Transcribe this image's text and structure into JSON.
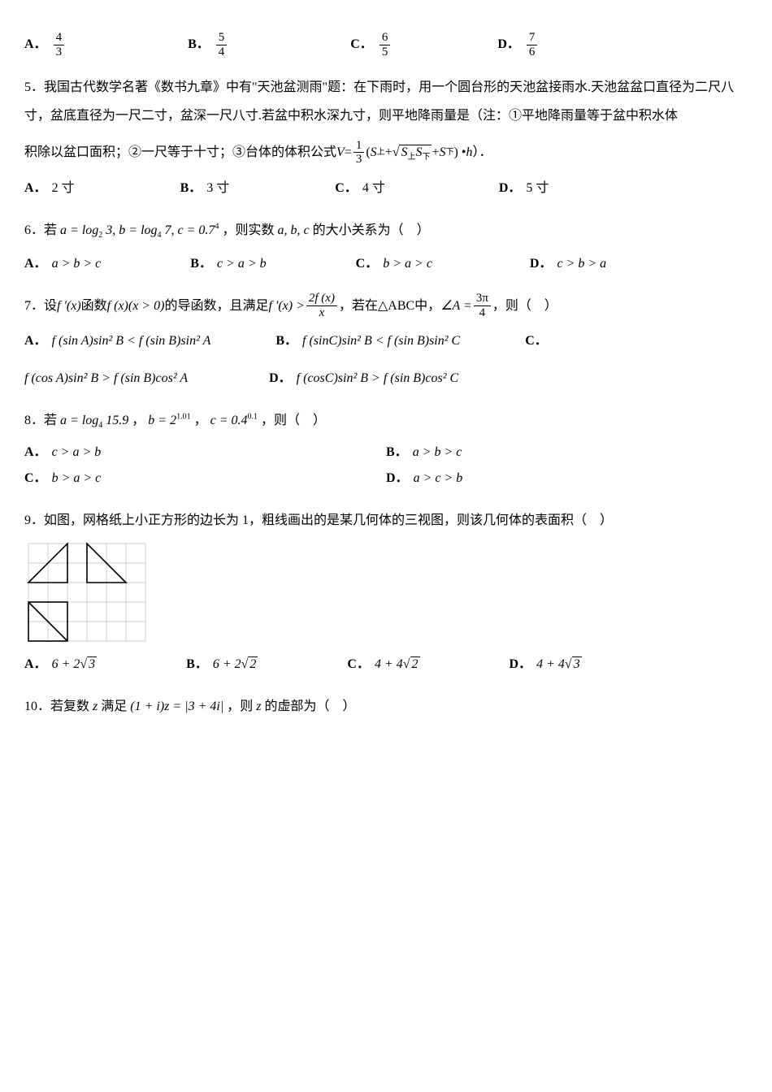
{
  "q4": {
    "options": {
      "A": {
        "num": "4",
        "den": "3"
      },
      "B": {
        "num": "5",
        "den": "4"
      },
      "C": {
        "num": "6",
        "den": "5"
      },
      "D": {
        "num": "7",
        "den": "6"
      }
    }
  },
  "q5": {
    "number": "5．",
    "text_part1": "我国古代数学名著《数书九章》中有\"天池盆测雨\"题：在下雨时，用一个圆台形的天池盆接雨水.天池盆盆口直径为二尺八寸，盆底直径为一尺二寸，盆深一尺八寸.若盆中积水深九寸，则平地降雨量是（注：①平地降雨量等于盆中积水体",
    "text_part2": "积除以盆口面积；②一尺等于十寸；③台体的体积公式",
    "formula_V": "V",
    "formula_eq": " = ",
    "formula_frac": {
      "num": "1",
      "den": "3"
    },
    "formula_S1": "S",
    "formula_sub1": "上",
    "formula_S2": "S",
    "formula_sub2": "上",
    "formula_S3": "S",
    "formula_sub3": "下",
    "formula_S4": "S",
    "formula_sub4": "下",
    "formula_h": "h",
    "text_part3": "）．",
    "options": {
      "A": "2 寸",
      "B": "3 寸",
      "C": "4 寸",
      "D": "5 寸"
    }
  },
  "q6": {
    "number": "6．",
    "text_pre": "若",
    "text_a": "a = log",
    "text_a_sub": "2",
    "text_a_val": " 3, b = log",
    "text_b_sub": "4",
    "text_b_val": " 7, c = 0.7",
    "text_c_sup": "4",
    "text_mid": "，则实数",
    "text_vars": "a, b, c",
    "text_post": "的大小关系为（　）",
    "options": {
      "A": "a > b > c",
      "B": "c > a > b",
      "C": "b > a > c",
      "D": "c > b > a"
    }
  },
  "q7": {
    "number": "7．",
    "text_pre": "设",
    "fprime": "f '(x)",
    "text_mid1": "函数",
    "fx": "f (x)(x > 0)",
    "text_mid2": "的导函数，且满足",
    "ineq_left": "f '(x) > ",
    "ineq_frac": {
      "num": "2f (x)",
      "den": "x"
    },
    "text_mid3": "，若在",
    "triangle": "△ABC",
    "text_mid4": "中，",
    "angle_A": "∠A = ",
    "angle_frac": {
      "num": "3π",
      "den": "4"
    },
    "text_post": "，则（　）",
    "options": {
      "A": "f (sin A)sin² B < f (sin B)sin² A",
      "B": "f (sinC)sin² B < f (sin B)sin² C",
      "C": "f (cos A)sin² B > f (sin B)cos² A",
      "D": "f (cosC)sin² B > f (sin B)cos² C"
    }
  },
  "q8": {
    "number": "8．",
    "text_pre": "若",
    "text_a": "a = log",
    "text_a_sub": "4",
    "text_a_val": " 15.9",
    "text_sep1": "，",
    "text_b": "b = 2",
    "text_b_sup": "1.01",
    "text_sep2": "，",
    "text_c": "c = 0.4",
    "text_c_sup": "0.1",
    "text_post": "，则（　）",
    "options": {
      "A": "c > a > b",
      "B": "a > b > c",
      "C": "b > a > c",
      "D": "a > c > b"
    }
  },
  "q9": {
    "number": "9．",
    "text": "如图，网格纸上小正方形的边长为 1，粗线画出的是某几何体的三视图，则该几何体的表面积（　）",
    "options": {
      "A": "6 + 2√3",
      "B": "6 + 2√2",
      "C": "4 + 4√2",
      "D": "4 + 4√3"
    },
    "svg": {
      "grid_color": "#bbb",
      "line_color": "#000",
      "cell": 24,
      "cols": 6,
      "rows": 5
    }
  },
  "q10": {
    "number": "10．",
    "text_pre": "若复数",
    "z": "z",
    "text_mid": "满足",
    "eq": "(1 + i)z = |3 + 4i|",
    "text_post": "，则",
    "z2": "z",
    "text_end": "的虚部为（　）"
  }
}
